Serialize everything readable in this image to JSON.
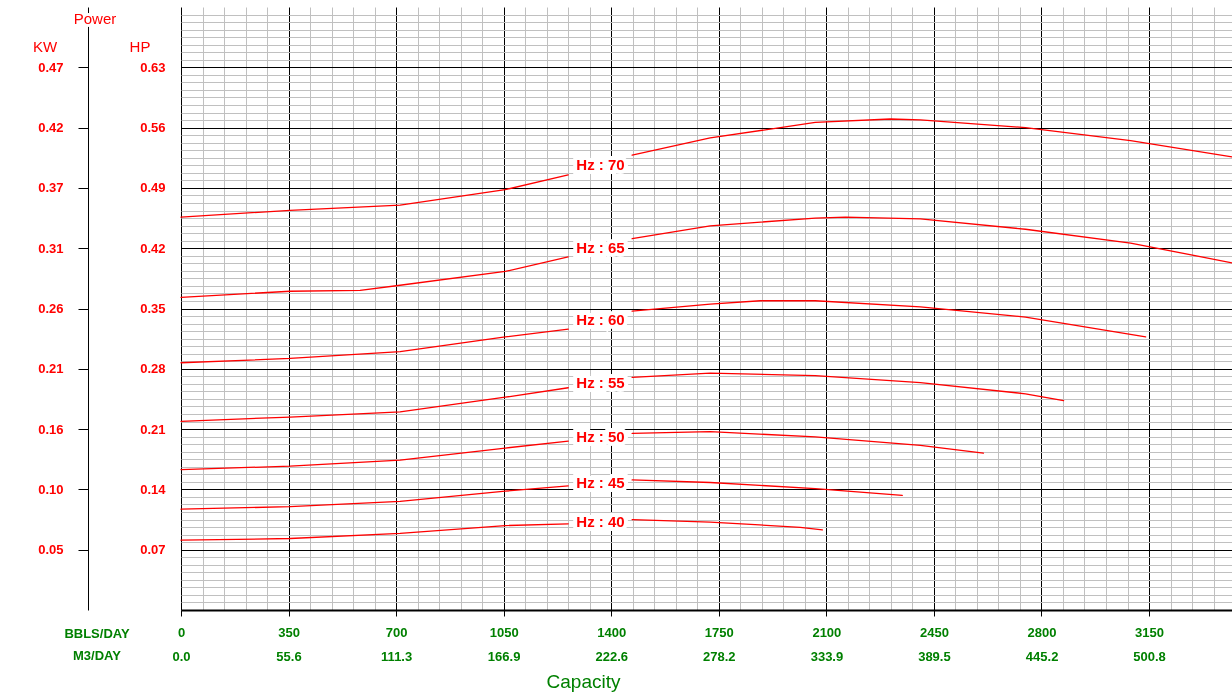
{
  "chart_data": {
    "type": "line",
    "title": "Power",
    "xlabel": "BBLS/DAY",
    "x2label": "M3/DAY",
    "ylabel": "HP",
    "y2label": "KW",
    "annotations": [
      "Capacity"
    ],
    "xlim": [
      0,
      3420
    ],
    "xticks": [
      0,
      {
        "value": 70,
        "label": null
      },
      {
        "value": 140,
        "label": null
      },
      {
        "value": 210,
        "label": null
      },
      {
        "value": 280,
        "label": null
      },
      350,
      {
        "value": 420,
        "label": null
      },
      {
        "value": 490,
        "label": null
      },
      {
        "value": 560,
        "label": null
      },
      {
        "value": 630,
        "label": null
      },
      700,
      {
        "value": 770,
        "label": null
      },
      {
        "value": 840,
        "label": null
      },
      {
        "value": 910,
        "label": null
      },
      {
        "value": 980,
        "label": null
      },
      1050,
      {
        "value": 1120,
        "label": null
      },
      {
        "value": 1190,
        "label": null
      },
      {
        "value": 1260,
        "label": null
      },
      {
        "value": 1330,
        "label": null
      },
      1400,
      {
        "value": 1470,
        "label": null
      },
      {
        "value": 1540,
        "label": null
      },
      {
        "value": 1610,
        "label": null
      },
      {
        "value": 1680,
        "label": null
      },
      1750,
      {
        "value": 1820,
        "label": null
      },
      {
        "value": 1890,
        "label": null
      },
      {
        "value": 1960,
        "label": null
      },
      {
        "value": 2030,
        "label": null
      },
      2100,
      {
        "value": 2170,
        "label": null
      },
      {
        "value": 2240,
        "label": null
      },
      {
        "value": 2310,
        "label": null
      },
      {
        "value": 2380,
        "label": null
      },
      2450,
      {
        "value": 2520,
        "label": null
      },
      {
        "value": 2590,
        "label": null
      },
      {
        "value": 2660,
        "label": null
      },
      {
        "value": 2730,
        "label": null
      },
      2800,
      {
        "value": 2870,
        "label": null
      },
      {
        "value": 2940,
        "label": null
      },
      {
        "value": 3010,
        "label": null
      },
      {
        "value": 3080,
        "label": null
      },
      3150,
      {
        "value": 3220,
        "label": null
      },
      {
        "value": 3290,
        "label": null
      },
      {
        "value": 3360,
        "label": null
      }
    ],
    "x2lim": [
      0,
      543.7
    ],
    "x2ticks": [
      {
        "value": 0,
        "label": "0.0"
      },
      55.6,
      111.3,
      166.9,
      222.6,
      278.2,
      333.9,
      389.5,
      445.2,
      500.8
    ],
    "ylim": [
      0,
      0.7
    ],
    "yticks": [
      {
        "value": 0.00875,
        "label": null
      },
      {
        "value": 0.0175,
        "label": null
      },
      {
        "value": 0.02625,
        "label": null
      },
      {
        "value": 0.035,
        "label": null
      },
      {
        "value": 0.04375,
        "label": null
      },
      {
        "value": 0.0525,
        "label": null
      },
      {
        "value": 0.06125,
        "label": null
      },
      0.07,
      {
        "value": 0.07875,
        "label": null
      },
      {
        "value": 0.0875,
        "label": null
      },
      {
        "value": 0.09625,
        "label": null
      },
      {
        "value": 0.105,
        "label": null
      },
      {
        "value": 0.11375,
        "label": null
      },
      {
        "value": 0.1225,
        "label": null
      },
      {
        "value": 0.13125,
        "label": null
      },
      0.14,
      {
        "value": 0.14875,
        "label": null
      },
      {
        "value": 0.1575,
        "label": null
      },
      {
        "value": 0.16625,
        "label": null
      },
      {
        "value": 0.175,
        "label": null
      },
      {
        "value": 0.18375,
        "label": null
      },
      {
        "value": 0.1925,
        "label": null
      },
      {
        "value": 0.20125,
        "label": null
      },
      0.21,
      {
        "value": 0.21875,
        "label": null
      },
      {
        "value": 0.2275,
        "label": null
      },
      {
        "value": 0.23625,
        "label": null
      },
      {
        "value": 0.245,
        "label": null
      },
      {
        "value": 0.25375,
        "label": null
      },
      {
        "value": 0.2625,
        "label": null
      },
      {
        "value": 0.27125,
        "label": null
      },
      0.28,
      {
        "value": 0.28875,
        "label": null
      },
      {
        "value": 0.2975,
        "label": null
      },
      {
        "value": 0.30625,
        "label": null
      },
      {
        "value": 0.315,
        "label": null
      },
      {
        "value": 0.32375,
        "label": null
      },
      {
        "value": 0.3325,
        "label": null
      },
      {
        "value": 0.34125,
        "label": null
      },
      0.35,
      {
        "value": 0.35875,
        "label": null
      },
      {
        "value": 0.3675,
        "label": null
      },
      {
        "value": 0.37625,
        "label": null
      },
      {
        "value": 0.385,
        "label": null
      },
      {
        "value": 0.39375,
        "label": null
      },
      {
        "value": 0.4025,
        "label": null
      },
      {
        "value": 0.41125,
        "label": null
      },
      0.42,
      {
        "value": 0.42875,
        "label": null
      },
      {
        "value": 0.4375,
        "label": null
      },
      {
        "value": 0.44625,
        "label": null
      },
      {
        "value": 0.455,
        "label": null
      },
      {
        "value": 0.46375,
        "label": null
      },
      {
        "value": 0.4725,
        "label": null
      },
      {
        "value": 0.48125,
        "label": null
      },
      0.49,
      {
        "value": 0.49875,
        "label": null
      },
      {
        "value": 0.5075,
        "label": null
      },
      {
        "value": 0.51625,
        "label": null
      },
      {
        "value": 0.525,
        "label": null
      },
      {
        "value": 0.53375,
        "label": null
      },
      {
        "value": 0.5425,
        "label": null
      },
      {
        "value": 0.55125,
        "label": null
      },
      0.56,
      {
        "value": 0.56875,
        "label": null
      },
      {
        "value": 0.5775,
        "label": null
      },
      {
        "value": 0.58625,
        "label": null
      },
      {
        "value": 0.595,
        "label": null
      },
      {
        "value": 0.60375,
        "label": null
      },
      {
        "value": 0.6125,
        "label": null
      },
      {
        "value": 0.62125,
        "label": null
      },
      0.63,
      {
        "value": 0.63875,
        "label": null
      },
      {
        "value": 0.6475,
        "label": null
      },
      {
        "value": 0.65625,
        "label": null
      },
      {
        "value": 0.665,
        "label": null
      },
      {
        "value": 0.67375,
        "label": null
      },
      {
        "value": 0.6825,
        "label": null
      },
      {
        "value": 0.69125,
        "label": null
      }
    ],
    "y2lim": [
      0,
      0.522
    ],
    "y2ticks": [
      {
        "value": 0.0522,
        "label": "0.05"
      },
      {
        "value": 0.1044,
        "label": "0.10"
      },
      {
        "value": 0.1566,
        "label": "0.16"
      },
      {
        "value": 0.2088,
        "label": "0.21"
      },
      {
        "value": 0.261,
        "label": "0.26"
      },
      {
        "value": 0.3132,
        "label": "0.31"
      },
      {
        "value": 0.3654,
        "label": "0.37"
      },
      {
        "value": 0.4176,
        "label": "0.42"
      },
      {
        "value": 0.4698,
        "label": "0.47"
      }
    ],
    "grid": true,
    "marker": "none",
    "series": [
      {
        "name": "Hz : 70",
        "color": "#ff0000",
        "x": [
          0,
          355,
          713,
          1055,
          1260,
          1365,
          1468,
          1722,
          2064,
          2308,
          2406,
          2748,
          3090,
          3420
        ],
        "values": [
          0.456,
          0.464,
          0.47,
          0.488,
          0.505,
          null,
          0.528,
          0.548,
          0.566,
          0.57,
          0.569,
          0.56,
          0.545,
          0.526
        ]
      },
      {
        "name": "Hz : 65",
        "color": "#ff0000",
        "x": [
          0,
          355,
          583,
          713,
          1055,
          1260,
          1365,
          1468,
          1722,
          2064,
          2162,
          2406,
          2748,
          3090,
          3420
        ],
        "values": [
          0.363,
          0.37,
          0.371,
          0.377,
          0.393,
          0.41,
          null,
          0.431,
          0.446,
          0.455,
          0.456,
          0.454,
          0.442,
          0.426,
          0.403
        ]
      },
      {
        "name": "Hz : 60",
        "color": "#ff0000",
        "x": [
          0,
          355,
          713,
          1055,
          1260,
          1365,
          1468,
          1722,
          1885,
          2064,
          2406,
          2748,
          3139
        ],
        "values": [
          0.287,
          0.292,
          0.3,
          0.317,
          0.326,
          null,
          0.347,
          0.355,
          0.359,
          0.359,
          0.352,
          0.34,
          0.317
        ]
      },
      {
        "name": "Hz : 55",
        "color": "#ff0000",
        "x": [
          0,
          355,
          713,
          1055,
          1260,
          1365,
          1468,
          1722,
          2064,
          2406,
          2748,
          2872
        ],
        "values": [
          0.219,
          0.224,
          0.23,
          0.247,
          0.258,
          null,
          0.27,
          0.275,
          0.272,
          0.264,
          0.251,
          0.243
        ]
      },
      {
        "name": "Hz : 50",
        "color": "#ff0000",
        "x": [
          0,
          355,
          713,
          1055,
          1260,
          1365,
          1468,
          1722,
          2064,
          2406,
          2611
        ],
        "values": [
          0.163,
          0.167,
          0.174,
          0.188,
          0.196,
          null,
          0.205,
          0.207,
          0.201,
          0.191,
          0.182
        ]
      },
      {
        "name": "Hz : 45",
        "color": "#ff0000",
        "x": [
          0,
          355,
          713,
          1055,
          1260,
          1365,
          1468,
          1722,
          2064,
          2347
        ],
        "values": [
          0.117,
          0.12,
          0.126,
          0.138,
          0.144,
          null,
          0.151,
          0.148,
          0.141,
          0.133
        ]
      },
      {
        "name": "Hz : 40",
        "color": "#ff0000",
        "x": [
          0,
          355,
          713,
          1055,
          1260,
          1365,
          1468,
          1722,
          2015,
          2087
        ],
        "values": [
          0.081,
          0.083,
          0.089,
          0.098,
          0.1,
          null,
          0.105,
          0.102,
          0.096,
          0.093
        ]
      }
    ]
  }
}
